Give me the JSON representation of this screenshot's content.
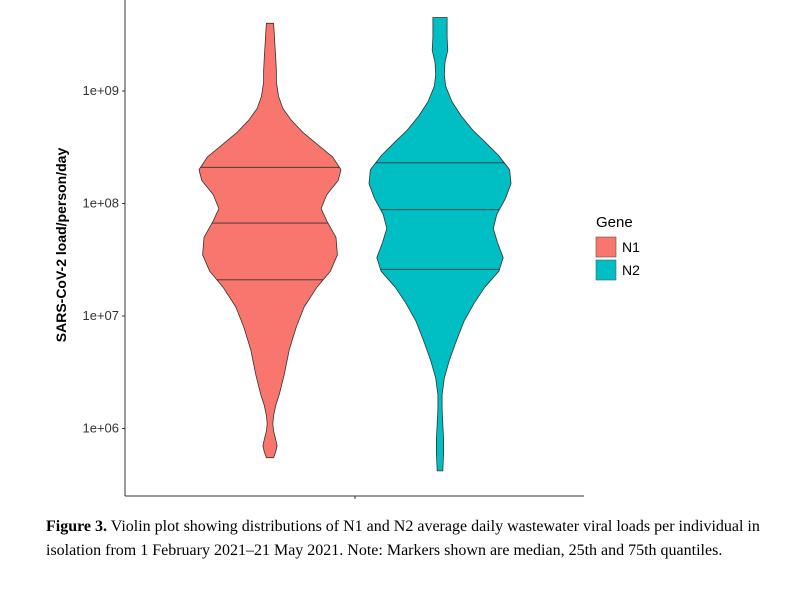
{
  "chart_data": {
    "type": "violin",
    "ylabel": "SARS-CoV-2 load/person/day",
    "y_scale": "log10",
    "y_ticks": [
      "1e+06",
      "1e+07",
      "1e+08",
      "1e+09"
    ],
    "ylim": [
      300000,
      10000000000
    ],
    "legend": {
      "title": "Gene",
      "position": "right"
    },
    "series": [
      {
        "name": "N1",
        "color": "#F8766D",
        "min": 550000,
        "max": 4000000000,
        "q25": 21000000,
        "median": 67000000,
        "q75": 210000000,
        "density": [
          [
            550000,
            0.05
          ],
          [
            620000,
            0.08
          ],
          [
            700000,
            0.1
          ],
          [
            800000,
            0.08
          ],
          [
            950000,
            0.05
          ],
          [
            1100000,
            0.04
          ],
          [
            1300000,
            0.05
          ],
          [
            1600000,
            0.08
          ],
          [
            2000000,
            0.13
          ],
          [
            3000000,
            0.2
          ],
          [
            5000000,
            0.27
          ],
          [
            8000000,
            0.37
          ],
          [
            12000000,
            0.48
          ],
          [
            18000000,
            0.66
          ],
          [
            25000000,
            0.85
          ],
          [
            35000000,
            0.95
          ],
          [
            50000000,
            0.93
          ],
          [
            70000000,
            0.8
          ],
          [
            90000000,
            0.72
          ],
          [
            120000000,
            0.8
          ],
          [
            160000000,
            0.96
          ],
          [
            200000000,
            1.0
          ],
          [
            260000000,
            0.88
          ],
          [
            330000000,
            0.68
          ],
          [
            430000000,
            0.46
          ],
          [
            550000000,
            0.3
          ],
          [
            700000000,
            0.18
          ],
          [
            900000000,
            0.12
          ],
          [
            1200000000,
            0.09
          ],
          [
            1500000000,
            0.09
          ],
          [
            2000000000,
            0.08
          ],
          [
            2500000000,
            0.07
          ],
          [
            3200000000,
            0.06
          ],
          [
            4000000000,
            0.05
          ]
        ]
      },
      {
        "name": "N2",
        "color": "#00BFC4",
        "min": 420000,
        "max": 4500000000,
        "q25": 26000000,
        "median": 88000000,
        "q75": 230000000,
        "density": [
          [
            420000,
            0.04
          ],
          [
            600000,
            0.05
          ],
          [
            800000,
            0.05
          ],
          [
            1100000,
            0.04
          ],
          [
            1500000,
            0.03
          ],
          [
            2000000,
            0.03
          ],
          [
            2800000,
            0.06
          ],
          [
            4000000,
            0.13
          ],
          [
            6000000,
            0.23
          ],
          [
            9000000,
            0.34
          ],
          [
            13000000,
            0.48
          ],
          [
            18000000,
            0.63
          ],
          [
            25000000,
            0.83
          ],
          [
            33000000,
            0.89
          ],
          [
            45000000,
            0.81
          ],
          [
            60000000,
            0.75
          ],
          [
            80000000,
            0.8
          ],
          [
            110000000,
            0.92
          ],
          [
            150000000,
            1.0
          ],
          [
            200000000,
            0.98
          ],
          [
            270000000,
            0.82
          ],
          [
            350000000,
            0.64
          ],
          [
            450000000,
            0.46
          ],
          [
            600000000,
            0.3
          ],
          [
            800000000,
            0.17
          ],
          [
            1100000000,
            0.08
          ],
          [
            1400000000,
            0.06
          ],
          [
            1800000000,
            0.07
          ],
          [
            2300000000,
            0.11
          ],
          [
            3000000000,
            0.1
          ],
          [
            3800000000,
            0.1
          ],
          [
            4500000000,
            0.1
          ]
        ]
      }
    ]
  },
  "caption": {
    "label": "Figure 3.",
    "text": " Violin plot showing distributions of N1 and N2 average daily wastewater viral loads per individual in isolation from 1 February 2021–21 May 2021. Note: Markers shown are median, 25th and 75th quantiles."
  }
}
